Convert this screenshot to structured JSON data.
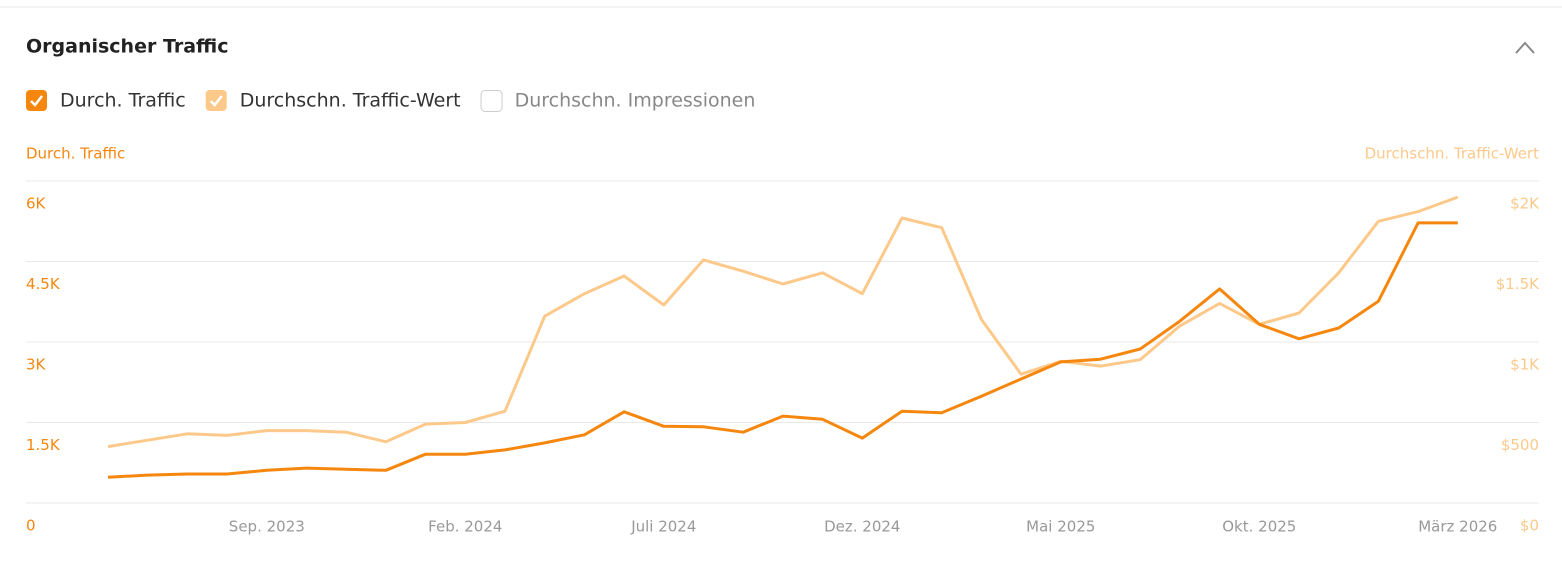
{
  "chart_data": {
    "type": "line",
    "title": "Organischer Traffic",
    "ylabel": "Durch. Traffic",
    "y2label": "Durchschn. Traffic-Wert",
    "unchecked_toggles": [
      "Durchschn. Impressionen"
    ],
    "categories": [
      null,
      null,
      null,
      null,
      "Sep. 2023",
      null,
      null,
      null,
      null,
      "Feb. 2024",
      null,
      null,
      null,
      null,
      "Juli 2024",
      null,
      null,
      null,
      null,
      "Dez. 2024",
      null,
      null,
      null,
      null,
      "Mai 2025",
      null,
      null,
      null,
      null,
      "Okt. 2025",
      null,
      null,
      null,
      null,
      "März 2026"
    ],
    "series": [
      {
        "name": "Durch. Traffic",
        "color": "#f5870f",
        "values": [
          480,
          520,
          540,
          540,
          610,
          650,
          630,
          610,
          910,
          910,
          990,
          1120,
          1270,
          1700,
          1430,
          1420,
          1320,
          1620,
          1560,
          1210,
          1710,
          1680,
          1990,
          2310,
          2630,
          2680,
          2870,
          3390,
          3990,
          3330,
          3060,
          3260,
          3760,
          5220,
          5220
        ]
      },
      {
        "name": "Durchschn. Traffic-Wert",
        "color": "#fdc98a",
        "axis": "y2",
        "values": [
          350,
          390,
          430,
          420,
          450,
          450,
          440,
          380,
          490,
          500,
          570,
          1160,
          1300,
          1410,
          1230,
          1510,
          1440,
          1360,
          1430,
          1300,
          1770,
          1710,
          1140,
          800,
          880,
          850,
          890,
          1100,
          1240,
          1110,
          1180,
          1430,
          1750,
          1810,
          1900
        ]
      }
    ],
    "ylim": [
      0,
      6000
    ],
    "yticks": [
      0,
      {
        "value": 1500,
        "label": "1.5K"
      },
      {
        "value": 3000,
        "label": "3K"
      },
      {
        "value": 4500,
        "label": "4.5K"
      },
      {
        "value": 6000,
        "label": "6K"
      }
    ],
    "y2lim": [
      0,
      2000
    ],
    "y2ticks": [
      {
        "value": 0,
        "label": "$0"
      },
      {
        "value": 500,
        "label": "$500"
      },
      {
        "value": 1000,
        "label": "$1K"
      },
      {
        "value": 1500,
        "label": "$1.5K"
      },
      {
        "value": 2000,
        "label": "$2K"
      }
    ],
    "grid": true
  }
}
